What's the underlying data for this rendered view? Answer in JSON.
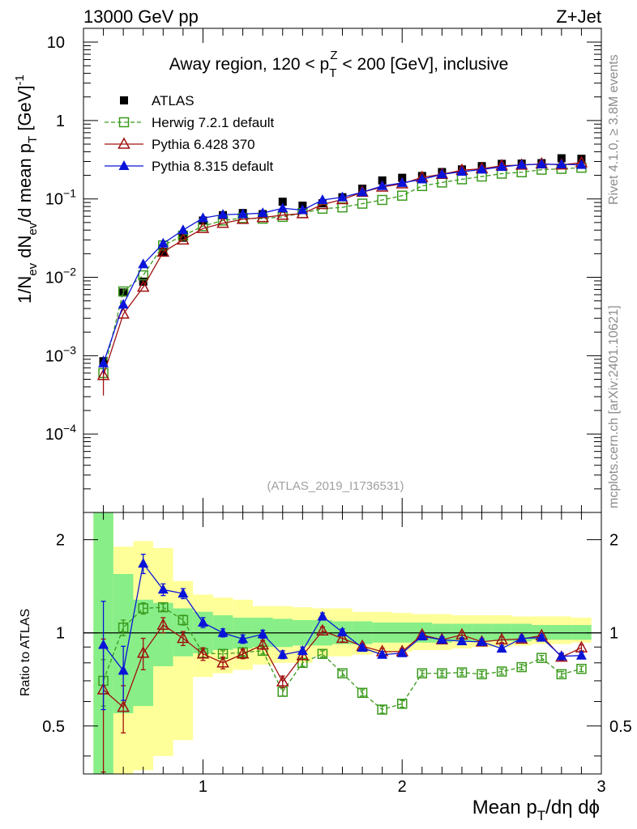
{
  "header": {
    "left": "13000 GeV pp",
    "right": "Z+Jet"
  },
  "side_text": {
    "rivet": "Rivet 4.1.0, ≥ 3.8M events",
    "mcplots": "mcplots.cern.ch [arXiv:2401.10621]"
  },
  "chart_data": [
    {
      "type": "scatter",
      "title": "Away region, 120 < p_T^Z < 200 [GeV], inclusive",
      "title_parts": {
        "a": "Away region, 120 < p",
        "sup": "Z",
        "sub": "T",
        "b": " < 200 [GeV], inclusive"
      },
      "analysis_tag": "(ATLAS_2019_I1736531)",
      "ylabel": "1/N_ev dN_ev/d mean p_T [GeV]^-1",
      "yscale": "log",
      "ylim": [
        1e-05,
        15
      ],
      "xlim": [
        0.4,
        3.0
      ],
      "y_ticks": [
        {
          "v": 10,
          "label": "10"
        },
        {
          "v": 1,
          "label": "1"
        },
        {
          "v": 0.1,
          "label": "10",
          "sup": "−1"
        },
        {
          "v": 0.01,
          "label": "10",
          "sup": "−2"
        },
        {
          "v": 0.001,
          "label": "10",
          "sup": "−3"
        },
        {
          "v": 0.0001,
          "label": "10",
          "sup": "−4"
        }
      ],
      "x": [
        0.5,
        0.6,
        0.7,
        0.8,
        0.9,
        1.0,
        1.1,
        1.2,
        1.3,
        1.4,
        1.5,
        1.6,
        1.7,
        1.8,
        1.9,
        2.0,
        2.1,
        2.2,
        2.3,
        2.4,
        2.5,
        2.6,
        2.7,
        2.8,
        2.9
      ],
      "series": [
        {
          "name": "ATLAS",
          "style": "data",
          "color": "#000000",
          "values": [
            0.00085,
            0.0064,
            0.0088,
            0.021,
            0.032,
            0.053,
            0.062,
            0.066,
            0.064,
            0.092,
            0.082,
            0.088,
            0.105,
            0.135,
            0.172,
            0.186,
            0.196,
            0.22,
            0.238,
            0.262,
            0.28,
            0.282,
            0.286,
            0.33,
            0.325
          ]
        },
        {
          "name": "Herwig 7.2.1 default",
          "style": "dashed-open-square",
          "color": "#3a9a1c",
          "values": [
            0.0006,
            0.0066,
            0.0106,
            0.0255,
            0.034,
            0.045,
            0.053,
            0.057,
            0.056,
            0.059,
            0.066,
            0.075,
            0.078,
            0.087,
            0.097,
            0.11,
            0.146,
            0.162,
            0.178,
            0.193,
            0.21,
            0.219,
            0.236,
            0.242,
            0.25
          ],
          "errors": [
            0.00012,
            0.0006,
            0,
            0,
            0,
            0,
            0,
            0,
            0,
            0,
            0,
            0,
            0,
            0,
            0,
            0,
            0,
            0,
            0,
            0,
            0,
            0,
            0,
            0,
            0
          ]
        },
        {
          "name": "Pythia 6.428 370",
          "style": "solid-open-triangle",
          "color": "#a01010",
          "values": [
            0.00056,
            0.0034,
            0.0075,
            0.021,
            0.03,
            0.042,
            0.049,
            0.055,
            0.058,
            0.062,
            0.065,
            0.085,
            0.098,
            0.122,
            0.142,
            0.156,
            0.188,
            0.206,
            0.232,
            0.243,
            0.265,
            0.27,
            0.28,
            0.272,
            0.29
          ],
          "errors": [
            0.00025,
            0,
            0,
            0,
            0,
            0,
            0,
            0,
            0,
            0,
            0,
            0,
            0,
            0,
            0,
            0,
            0,
            0,
            0,
            0,
            0,
            0,
            0,
            0,
            0
          ]
        },
        {
          "name": "Pythia 8.315 default",
          "style": "solid-filled-triangle",
          "color": "#0a14d8",
          "values": [
            0.0008,
            0.0045,
            0.0147,
            0.027,
            0.04,
            0.057,
            0.063,
            0.064,
            0.066,
            0.076,
            0.072,
            0.097,
            0.105,
            0.122,
            0.146,
            0.16,
            0.178,
            0.206,
            0.222,
            0.237,
            0.256,
            0.273,
            0.277,
            0.276,
            0.272
          ],
          "errors": [
            0.0002,
            0.0006,
            0,
            0,
            0,
            0,
            0,
            0,
            0,
            0,
            0,
            0,
            0,
            0,
            0,
            0,
            0,
            0,
            0,
            0,
            0,
            0,
            0,
            0,
            0
          ]
        }
      ],
      "legend_position": "upper-left"
    },
    {
      "type": "scatter",
      "title": "",
      "ylabel": "Ratio to ATLAS",
      "xlabel": "Mean p_T/dη dφ",
      "yscale": "log",
      "ylim": [
        0.35,
        2.45
      ],
      "xlim": [
        0.4,
        3.0
      ],
      "y_ticks": [
        {
          "v": 2,
          "label": "2"
        },
        {
          "v": 1,
          "label": "1"
        },
        {
          "v": 0.5,
          "label": "0.5"
        }
      ],
      "x_ticks": [
        {
          "v": 1,
          "label": "1"
        },
        {
          "v": 2,
          "label": "2"
        },
        {
          "v": 3,
          "label": "3"
        }
      ],
      "bin_edges": [
        0.45,
        0.55,
        0.65,
        0.75,
        0.85,
        0.95,
        1.05,
        1.15,
        1.25,
        1.35,
        1.45,
        1.55,
        1.65,
        1.75,
        1.85,
        1.95,
        2.05,
        2.15,
        2.25,
        2.35,
        2.45,
        2.55,
        2.65,
        2.75,
        2.85,
        2.95
      ],
      "band_inner": [
        [
          0.3,
          2.45
        ],
        [
          0.55,
          1.55
        ],
        [
          0.58,
          1.28
        ],
        [
          0.78,
          1.25
        ],
        [
          0.84,
          1.2
        ],
        [
          0.86,
          1.17
        ],
        [
          0.88,
          1.14
        ],
        [
          0.89,
          1.12
        ],
        [
          0.9,
          1.12
        ],
        [
          0.9,
          1.11
        ],
        [
          0.91,
          1.1
        ],
        [
          0.91,
          1.1
        ],
        [
          0.92,
          1.09
        ],
        [
          0.92,
          1.09
        ],
        [
          0.93,
          1.08
        ],
        [
          0.93,
          1.08
        ],
        [
          0.93,
          1.08
        ],
        [
          0.93,
          1.07
        ],
        [
          0.94,
          1.07
        ],
        [
          0.94,
          1.07
        ],
        [
          0.94,
          1.07
        ],
        [
          0.94,
          1.07
        ],
        [
          0.95,
          1.06
        ],
        [
          0.95,
          1.06
        ],
        [
          0.95,
          1.06
        ]
      ],
      "band_outer": [
        [
          0.3,
          2.45
        ],
        [
          0.35,
          1.9
        ],
        [
          0.36,
          1.98
        ],
        [
          0.4,
          1.88
        ],
        [
          0.45,
          1.47
        ],
        [
          0.72,
          1.33
        ],
        [
          0.74,
          1.3
        ],
        [
          0.76,
          1.28
        ],
        [
          0.79,
          1.22
        ],
        [
          0.8,
          1.22
        ],
        [
          0.8,
          1.21
        ],
        [
          0.84,
          1.2
        ],
        [
          0.84,
          1.2
        ],
        [
          0.85,
          1.17
        ],
        [
          0.86,
          1.17
        ],
        [
          0.87,
          1.16
        ],
        [
          0.88,
          1.15
        ],
        [
          0.88,
          1.15
        ],
        [
          0.89,
          1.14
        ],
        [
          0.9,
          1.14
        ],
        [
          0.9,
          1.14
        ],
        [
          0.91,
          1.13
        ],
        [
          0.92,
          1.13
        ],
        [
          0.92,
          1.13
        ],
        [
          0.93,
          1.12
        ]
      ],
      "x": [
        0.5,
        0.6,
        0.7,
        0.8,
        0.9,
        1.0,
        1.1,
        1.2,
        1.3,
        1.4,
        1.5,
        1.6,
        1.7,
        1.8,
        1.9,
        2.0,
        2.1,
        2.2,
        2.3,
        2.4,
        2.5,
        2.6,
        2.7,
        2.8,
        2.9
      ],
      "series": [
        {
          "name": "Herwig 7.2.1 default",
          "style": "dashed-open-square",
          "color": "#3a9a1c",
          "values": [
            0.7,
            1.04,
            1.2,
            1.21,
            1.1,
            0.86,
            0.855,
            0.865,
            0.875,
            0.645,
            0.8,
            0.855,
            0.74,
            0.64,
            0.565,
            0.59,
            0.74,
            0.74,
            0.745,
            0.735,
            0.75,
            0.775,
            0.83,
            0.735,
            0.765
          ],
          "errors": [
            0.12,
            0.06,
            0.05,
            0.03,
            0.04,
            0.025,
            0.02,
            0.02,
            0.02,
            0.02,
            0.02,
            0.02,
            0.015,
            0.015,
            0.015,
            0.015,
            0.015,
            0.015,
            0.015,
            0.015,
            0.015,
            0.015,
            0.015,
            0.015,
            0.015
          ]
        },
        {
          "name": "Pythia 6.428 370",
          "style": "solid-open-triangle",
          "color": "#a01010",
          "values": [
            0.655,
            0.575,
            0.86,
            1.06,
            0.96,
            0.855,
            0.8,
            0.855,
            0.915,
            0.695,
            0.845,
            1.015,
            0.96,
            0.905,
            0.87,
            0.87,
            0.985,
            0.95,
            0.985,
            0.935,
            0.95,
            0.955,
            0.98,
            0.835,
            0.895
          ],
          "errors": [
            0.3,
            0.1,
            0.1,
            0.06,
            0.05,
            0.04,
            0.035,
            0.03,
            0.03,
            0.03,
            0.025,
            0.03,
            0.025,
            0.02,
            0.02,
            0.02,
            0.02,
            0.02,
            0.02,
            0.02,
            0.02,
            0.02,
            0.02,
            0.02,
            0.02
          ]
        },
        {
          "name": "Pythia 8.315 default",
          "style": "solid-filled-triangle",
          "color": "#0a14d8",
          "values": [
            0.915,
            0.755,
            1.675,
            1.38,
            1.34,
            1.08,
            1.0,
            0.955,
            0.99,
            0.85,
            0.875,
            1.13,
            1.005,
            0.895,
            0.85,
            0.86,
            0.975,
            0.95,
            0.94,
            0.935,
            0.89,
            0.96,
            0.965,
            0.84,
            0.845
          ],
          "errors": [
            0.35,
            0.15,
            0.12,
            0.06,
            0.05,
            0.04,
            0.03,
            0.03,
            0.03,
            0.025,
            0.025,
            0.03,
            0.025,
            0.02,
            0.02,
            0.02,
            0.02,
            0.02,
            0.02,
            0.02,
            0.02,
            0.02,
            0.02,
            0.02,
            0.02
          ]
        }
      ]
    }
  ]
}
